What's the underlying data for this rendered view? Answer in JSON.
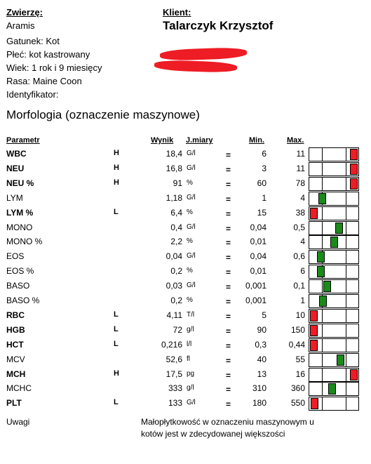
{
  "patient": {
    "animal_label": "Zwierzę:",
    "name": "Aramis",
    "species": "Gatunek: Kot",
    "sex": "Płeć: kot kastrowany",
    "age": "Wiek: 1 rok i 9 miesięcy",
    "breed": "Rasa: Maine Coon",
    "identifier": "Identyfikator:"
  },
  "client": {
    "label": "Klient:",
    "name": "Talarczyk Krzysztof"
  },
  "section_title": "Morfologia (oznaczenie maszynowe)",
  "columns": {
    "param": "Parametr",
    "result": "Wynik",
    "unit": "J.miary",
    "min": "Min.",
    "max": "Max."
  },
  "colors": {
    "high_low": "#ee1c24",
    "normal": "#1a8a1a"
  },
  "rows": [
    {
      "name": "WBC",
      "bold": true,
      "flag": "H",
      "value": "18,4",
      "unit": "G/l",
      "min": "6",
      "max": "11",
      "level": 0.93,
      "status": "abnormal"
    },
    {
      "name": "NEU",
      "bold": true,
      "flag": "H",
      "value": "16,8",
      "unit": "G/l",
      "min": "3",
      "max": "11",
      "level": 0.93,
      "status": "abnormal"
    },
    {
      "name": "NEU %",
      "bold": true,
      "flag": "H",
      "value": "91",
      "unit": "%",
      "min": "60",
      "max": "78",
      "level": 0.93,
      "status": "abnormal"
    },
    {
      "name": "LYM",
      "bold": false,
      "flag": "",
      "value": "1,18",
      "unit": "G/l",
      "min": "1",
      "max": "4",
      "level": 0.26,
      "status": "normal"
    },
    {
      "name": "LYM %",
      "bold": true,
      "flag": "L",
      "value": "6,4",
      "unit": "%",
      "min": "15",
      "max": "38",
      "level": 0.07,
      "status": "abnormal"
    },
    {
      "name": "MONO",
      "bold": false,
      "flag": "",
      "value": "0,4",
      "unit": "G/l",
      "min": "0,04",
      "max": "0,5",
      "level": 0.6,
      "status": "normal"
    },
    {
      "name": "MONO %",
      "bold": false,
      "flag": "",
      "value": "2,2",
      "unit": "%",
      "min": "0,01",
      "max": "4",
      "level": 0.5,
      "status": "normal"
    },
    {
      "name": "EOS",
      "bold": false,
      "flag": "",
      "value": "0,04",
      "unit": "G/l",
      "min": "0,04",
      "max": "0,6",
      "level": 0.23,
      "status": "normal"
    },
    {
      "name": "EOS %",
      "bold": false,
      "flag": "",
      "value": "0,2",
      "unit": "%",
      "min": "0,01",
      "max": "6",
      "level": 0.23,
      "status": "normal"
    },
    {
      "name": "BASO",
      "bold": false,
      "flag": "",
      "value": "0,03",
      "unit": "G/l",
      "min": "0,001",
      "max": "0,1",
      "level": 0.36,
      "status": "normal"
    },
    {
      "name": "BASO %",
      "bold": false,
      "flag": "",
      "value": "0,2",
      "unit": "%",
      "min": "0,001",
      "max": "1",
      "level": 0.28,
      "status": "normal"
    },
    {
      "name": "RBC",
      "bold": true,
      "flag": "L",
      "value": "4,11",
      "unit": "T/l",
      "min": "5",
      "max": "10",
      "level": 0.08,
      "status": "abnormal"
    },
    {
      "name": "HGB",
      "bold": true,
      "flag": "L",
      "value": "72",
      "unit": "g/l",
      "min": "90",
      "max": "150",
      "level": 0.08,
      "status": "abnormal"
    },
    {
      "name": "HCT",
      "bold": true,
      "flag": "L",
      "value": "0,216",
      "unit": "l/l",
      "min": "0,3",
      "max": "0,44",
      "level": 0.02,
      "status": "abnormal"
    },
    {
      "name": "MCV",
      "bold": false,
      "flag": "",
      "value": "52,6",
      "unit": "fl",
      "min": "40",
      "max": "55",
      "level": 0.63,
      "status": "normal"
    },
    {
      "name": "MCH",
      "bold": true,
      "flag": "H",
      "value": "17,5",
      "unit": "pg",
      "min": "13",
      "max": "16",
      "level": 0.9,
      "status": "abnormal"
    },
    {
      "name": "MCHC",
      "bold": false,
      "flag": "",
      "value": "333",
      "unit": "g/l",
      "min": "310",
      "max": "360",
      "level": 0.46,
      "status": "normal"
    },
    {
      "name": "PLT",
      "bold": true,
      "flag": "L",
      "value": "133",
      "unit": "G/l",
      "min": "180",
      "max": "550",
      "level": 0.1,
      "status": "abnormal"
    }
  ],
  "remarks": {
    "label": "Uwagi",
    "line1": "Małopłytkowość w oznaczeniu maszynowym u",
    "line2": "kotów jest w zdecydowanej większości"
  }
}
